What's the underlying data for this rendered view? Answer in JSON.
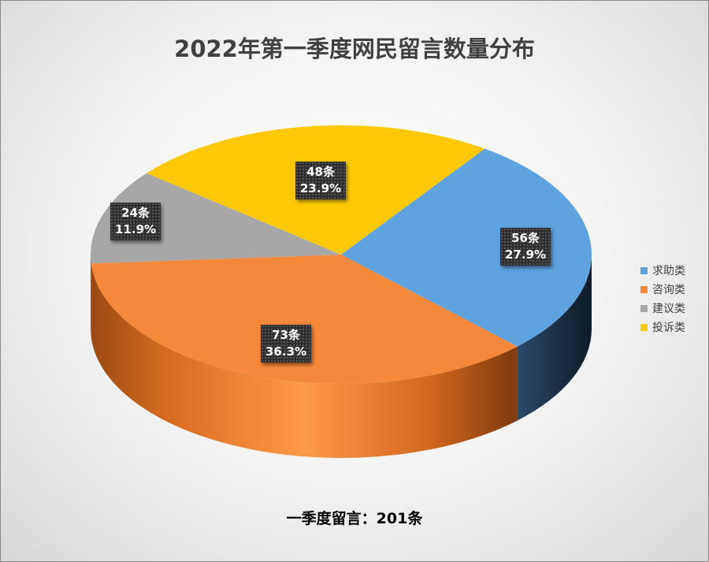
{
  "chart_data": {
    "type": "pie",
    "title": "2022年第一季度网民留言数量分布",
    "subtitle": "一季度留言：201条",
    "slices": [
      {
        "name": "求助类",
        "value": 56,
        "value_label": "56条",
        "percent_label": "27.9%",
        "color": "#5fa2e0"
      },
      {
        "name": "咨询类",
        "value": 73,
        "value_label": "73条",
        "percent_label": "36.3%",
        "color": "#f5883a"
      },
      {
        "name": "建议类",
        "value": 24,
        "value_label": "24条",
        "percent_label": "11.9%",
        "color": "#a7a7a7"
      },
      {
        "name": "投诉类",
        "value": 48,
        "value_label": "48条",
        "percent_label": "23.9%",
        "color": "#ffc805"
      }
    ],
    "legend_position": "right"
  }
}
